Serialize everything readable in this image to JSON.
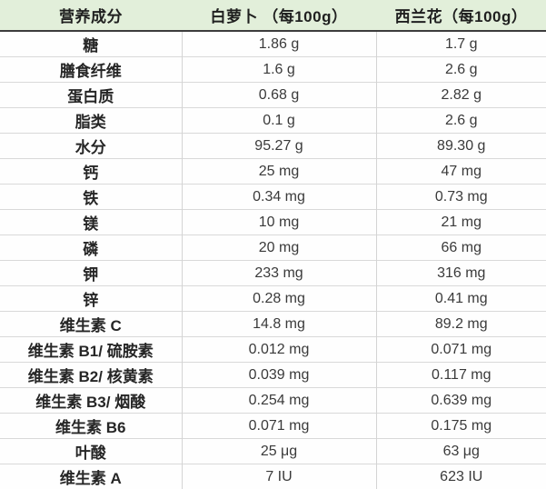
{
  "chart_data": {
    "type": "table",
    "title": "",
    "columns": [
      "营养成分",
      "白萝卜 （每100g）",
      "西兰花（每100g）"
    ],
    "rows": [
      [
        "糖",
        "1.86 g",
        "1.7 g"
      ],
      [
        "膳食纤维",
        "1.6 g",
        "2.6 g"
      ],
      [
        "蛋白质",
        "0.68 g",
        "2.82 g"
      ],
      [
        "脂类",
        "0.1 g",
        "2.6 g"
      ],
      [
        "水分",
        "95.27 g",
        "89.30 g"
      ],
      [
        "钙",
        "25 mg",
        "47 mg"
      ],
      [
        "铁",
        "0.34 mg",
        "0.73 mg"
      ],
      [
        "镁",
        "10 mg",
        "21 mg"
      ],
      [
        "磷",
        "20 mg",
        "66 mg"
      ],
      [
        "钾",
        "233 mg",
        "316 mg"
      ],
      [
        "锌",
        "0.28 mg",
        "0.41 mg"
      ],
      [
        "维生素 C",
        "14.8 mg",
        "89.2 mg"
      ],
      [
        "维生素 B1/ 硫胺素",
        "0.012 mg",
        "0.071 mg"
      ],
      [
        "维生素 B2/ 核黄素",
        "0.039 mg",
        "0.117 mg"
      ],
      [
        "维生素 B3/ 烟酸",
        "0.254 mg",
        "0.639 mg"
      ],
      [
        "维生素 B6",
        "0.071 mg",
        "0.175 mg"
      ],
      [
        "叶酸",
        "25 μg",
        "63 μg"
      ],
      [
        "维生素 A",
        "7 IU",
        "623 IU"
      ]
    ]
  },
  "table": {
    "headers": [
      "营养成分",
      "白萝卜 （每100g）",
      "西兰花（每100g）"
    ],
    "rows": [
      {
        "nutrient": "糖",
        "radish": "1.86 g",
        "broccoli": "1.7 g"
      },
      {
        "nutrient": "膳食纤维",
        "radish": "1.6 g",
        "broccoli": "2.6 g"
      },
      {
        "nutrient": "蛋白质",
        "radish": "0.68 g",
        "broccoli": "2.82 g"
      },
      {
        "nutrient": "脂类",
        "radish": "0.1 g",
        "broccoli": "2.6 g"
      },
      {
        "nutrient": "水分",
        "radish": "95.27 g",
        "broccoli": "89.30 g"
      },
      {
        "nutrient": "钙",
        "radish": "25 mg",
        "broccoli": "47 mg"
      },
      {
        "nutrient": "铁",
        "radish": "0.34 mg",
        "broccoli": "0.73 mg"
      },
      {
        "nutrient": "镁",
        "radish": "10 mg",
        "broccoli": "21 mg"
      },
      {
        "nutrient": "磷",
        "radish": "20 mg",
        "broccoli": "66 mg"
      },
      {
        "nutrient": "钾",
        "radish": "233 mg",
        "broccoli": "316 mg"
      },
      {
        "nutrient": "锌",
        "radish": "0.28 mg",
        "broccoli": "0.41 mg"
      },
      {
        "nutrient": "维生素 C",
        "radish": "14.8 mg",
        "broccoli": "89.2 mg"
      },
      {
        "nutrient": "维生素 B1/ 硫胺素",
        "radish": "0.012 mg",
        "broccoli": "0.071 mg"
      },
      {
        "nutrient": "维生素 B2/ 核黄素",
        "radish": "0.039 mg",
        "broccoli": "0.117 mg"
      },
      {
        "nutrient": "维生素 B3/ 烟酸",
        "radish": "0.254 mg",
        "broccoli": "0.639 mg"
      },
      {
        "nutrient": "维生素 B6",
        "radish": "0.071 mg",
        "broccoli": "0.175 mg"
      },
      {
        "nutrient": "叶酸",
        "radish": "25 μg",
        "broccoli": "63 μg"
      },
      {
        "nutrient": "维生素 A",
        "radish": "7 IU",
        "broccoli": "623 IU"
      }
    ]
  },
  "colors": {
    "header_bg": "#e2efda",
    "header_text": "#1f1f1f",
    "label_text": "#262626",
    "value_text": "#3a3a3a",
    "row_line": "#d9d9d9",
    "col_line": "#d4d4d4",
    "header_border": "#3c3c3c"
  }
}
